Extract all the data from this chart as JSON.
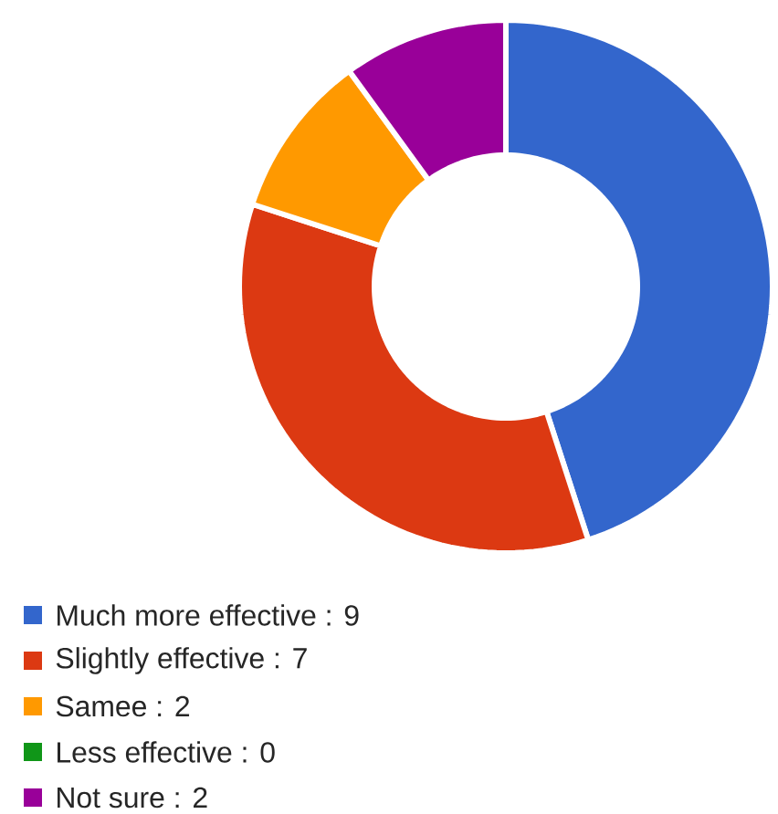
{
  "chart_data": {
    "type": "donut",
    "categories": [
      "Much more effective : 9",
      "Slightly effective : 7",
      "Samee : 2",
      "Less effective : 0",
      "Not sure : 2"
    ],
    "values": [
      9,
      7,
      2,
      0,
      2
    ],
    "colors": [
      "#3366cc",
      "#dc3912",
      "#ff9900",
      "#109618",
      "#990099"
    ],
    "legend": "bottom left"
  }
}
